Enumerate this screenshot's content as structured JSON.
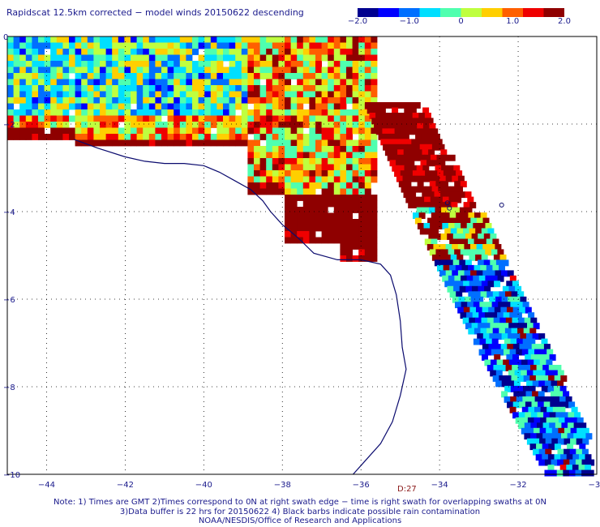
{
  "title": "Rapidscat 12.5km corrected − model winds 20150622 descending",
  "colorbar": {
    "min": -2.0,
    "max": 2.0,
    "ticks": [
      {
        "value": -2.0,
        "label": "−2.0"
      },
      {
        "value": -1.0,
        "label": "−1.0"
      },
      {
        "value": 0,
        "label": "0"
      },
      {
        "value": 1.0,
        "label": "1.0"
      },
      {
        "value": 2.0,
        "label": "2.0"
      }
    ],
    "colors": [
      "#00008f",
      "#0000ff",
      "#006fff",
      "#00dfff",
      "#4fffaf",
      "#bfff3f",
      "#ffcf00",
      "#ff5f00",
      "#ef0000",
      "#8f0000"
    ]
  },
  "map": {
    "lon_range": [
      -45,
      -30
    ],
    "lat_range": [
      -10,
      0
    ],
    "lon_ticks": [
      {
        "value": -44,
        "label": "−44"
      },
      {
        "value": -42,
        "label": "−42"
      },
      {
        "value": -40,
        "label": "−40"
      },
      {
        "value": -38,
        "label": "−38"
      },
      {
        "value": -36,
        "label": "−36"
      },
      {
        "value": -34,
        "label": "−34"
      },
      {
        "value": -32,
        "label": "−32"
      },
      {
        "value": -30,
        "label": "−30"
      }
    ],
    "lat_ticks": [
      {
        "value": 0,
        "label": "0"
      },
      {
        "value": -2,
        "label": "−2"
      },
      {
        "value": -4,
        "label": "−4"
      },
      {
        "value": -6,
        "label": "−6"
      },
      {
        "value": -8,
        "label": "−8"
      },
      {
        "value": -10,
        "label": "−10"
      }
    ],
    "coast_color": "#0a0a6e",
    "grid_color": "#000000",
    "coastline": [
      [
        -43.3,
        -2.35
      ],
      [
        -42.7,
        -2.55
      ],
      [
        -42.0,
        -2.75
      ],
      [
        -41.5,
        -2.85
      ],
      [
        -41.0,
        -2.9
      ],
      [
        -40.5,
        -2.9
      ],
      [
        -40.0,
        -2.95
      ],
      [
        -39.6,
        -3.1
      ],
      [
        -39.2,
        -3.3
      ],
      [
        -38.8,
        -3.5
      ],
      [
        -38.5,
        -3.75
      ],
      [
        -38.3,
        -4.0
      ],
      [
        -38.0,
        -4.3
      ],
      [
        -37.6,
        -4.6
      ],
      [
        -37.2,
        -4.95
      ],
      [
        -36.6,
        -5.1
      ],
      [
        -36.0,
        -5.1
      ],
      [
        -35.5,
        -5.2
      ],
      [
        -35.25,
        -5.45
      ],
      [
        -35.1,
        -5.9
      ],
      [
        -35.0,
        -6.5
      ],
      [
        -34.95,
        -7.1
      ],
      [
        -34.85,
        -7.6
      ],
      [
        -35.0,
        -8.2
      ],
      [
        -35.2,
        -8.8
      ],
      [
        -35.5,
        -9.3
      ],
      [
        -35.9,
        -9.7
      ],
      [
        -36.2,
        -10.0
      ]
    ],
    "islands": [
      [
        -32.42,
        -3.85
      ],
      [
        -33.8,
        -3.8
      ],
      [
        -33.75,
        -3.92
      ]
    ],
    "wind_difference": {
      "swath_a": {
        "lon_range": [
          -45,
          -35.6
        ],
        "lat_edge": [
          0,
          -1.2,
          -2.1,
          -2.6,
          -3.2,
          -3.8,
          -4.6
        ],
        "pattern": "positive-mixed"
      },
      "swath_b": {
        "center_start": [
          -35.0,
          -2.5
        ],
        "center_end": [
          -30.6,
          -9.9
        ],
        "pattern": "positive-to-negative"
      }
    }
  },
  "swath_time": "D:27",
  "notes": [
    "Note: 1) Times are GMT 2)Times correspond to 0N at right swath edge − time is right swath for overlapping swaths at 0N",
    "3)Data buffer is 22 hrs for 20150622 4) Black barbs indicate possible rain contamination",
    "NOAA/NESDIS/Office of Research and Applications"
  ]
}
